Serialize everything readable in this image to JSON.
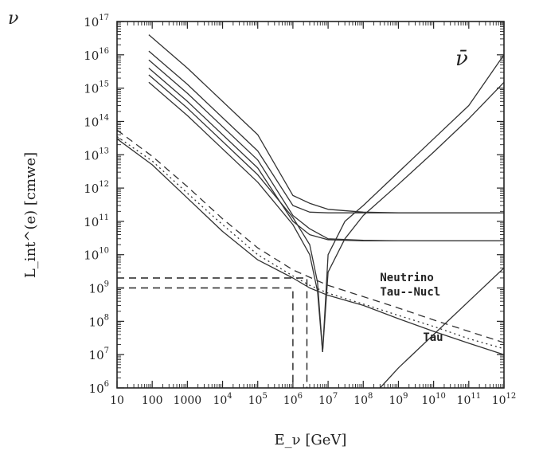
{
  "chart_data": {
    "type": "line",
    "corner_label": "ν",
    "panel_label": "ν̄",
    "xlabel": "E_ν [GeV]",
    "ylabel": "L_int^(e) [cmwe]",
    "xscale": "log",
    "yscale": "log",
    "xlim": [
      10,
      1000000000000.0
    ],
    "ylim": [
      1000000.0,
      1e+17
    ],
    "x_ticks": [
      {
        "value": 10,
        "label": "10"
      },
      {
        "value": 100,
        "label": "100"
      },
      {
        "value": 1000,
        "label": "1000"
      },
      {
        "value": 10000.0,
        "base": "10",
        "exp": "4"
      },
      {
        "value": 100000.0,
        "base": "10",
        "exp": "5"
      },
      {
        "value": 1000000.0,
        "base": "10",
        "exp": "6"
      },
      {
        "value": 10000000.0,
        "base": "10",
        "exp": "7"
      },
      {
        "value": 100000000.0,
        "base": "10",
        "exp": "8"
      },
      {
        "value": 1000000000.0,
        "base": "10",
        "exp": "9"
      },
      {
        "value": 10000000000.0,
        "base": "10",
        "exp": "10"
      },
      {
        "value": 100000000000.0,
        "base": "10",
        "exp": "11"
      },
      {
        "value": 1000000000000.0,
        "base": "10",
        "exp": "12"
      }
    ],
    "y_ticks": [
      {
        "value": 1000000.0,
        "base": "10",
        "exp": "6"
      },
      {
        "value": 10000000.0,
        "base": "10",
        "exp": "7"
      },
      {
        "value": 100000000.0,
        "base": "10",
        "exp": "8"
      },
      {
        "value": 1000000000.0,
        "base": "10",
        "exp": "9"
      },
      {
        "value": 10000000000.0,
        "base": "10",
        "exp": "10"
      },
      {
        "value": 100000000000.0,
        "base": "10",
        "exp": "11"
      },
      {
        "value": 1000000000000.0,
        "base": "10",
        "exp": "12"
      },
      {
        "value": 10000000000000.0,
        "base": "10",
        "exp": "13"
      },
      {
        "value": 100000000000000.0,
        "base": "10",
        "exp": "14"
      },
      {
        "value": 1000000000000000.0,
        "base": "10",
        "exp": "15"
      },
      {
        "value": 1e+16,
        "base": "10",
        "exp": "16"
      },
      {
        "value": 1e+17,
        "base": "10",
        "exp": "17"
      }
    ],
    "annotations": [
      {
        "text": "Neutrino",
        "x": 300000000.0,
        "y": 1600000000.0
      },
      {
        "text": "Tau--Nucl",
        "x": 300000000.0,
        "y": 600000000.0
      },
      {
        "text": "Tau",
        "x": 5000000000.0,
        "y": 26000000.0
      }
    ],
    "series": [
      {
        "style": "solid",
        "x": [
          80,
          1000,
          100000.0,
          1000000.0,
          3000000.0,
          10000000.0,
          100000000.0,
          1000000000.0,
          1000000000000.0
        ],
        "y": [
          4e+16,
          4000000000000000.0,
          40000000000000.0,
          600000000000.0,
          350000000000.0,
          230000000000.0,
          190000000000.0,
          180000000000.0,
          180000000000.0
        ]
      },
      {
        "style": "solid",
        "x": [
          80,
          1000,
          100000.0,
          1000000.0,
          3000000.0,
          10000000.0,
          100000000.0,
          1000000000.0,
          1000000000000.0
        ],
        "y": [
          1.3e+16,
          1300000000000000.0,
          13000000000000.0,
          300000000000.0,
          190000000000.0,
          180000000000.0,
          180000000000.0,
          180000000000.0,
          180000000000.0
        ]
      },
      {
        "style": "solid",
        "x": [
          80,
          1000,
          100000.0,
          1000000.0,
          3000000.0,
          10000000.0,
          100000000.0,
          1000000000.0,
          1000000000000.0
        ],
        "y": [
          7000000000000000.0,
          700000000000000.0,
          7000000000000.0,
          150000000000.0,
          60000000000.0,
          30000000000.0,
          27000000000.0,
          26000000000.0,
          26000000000.0
        ]
      },
      {
        "style": "solid",
        "x": [
          80,
          1000,
          100000.0,
          1000000.0,
          3000000.0,
          10000000.0,
          100000000.0,
          1000000000.0,
          1000000000000.0
        ],
        "y": [
          4000000000000000.0,
          400000000000000.0,
          4000000000000.0,
          100000000000.0,
          40000000000.0,
          28000000000.0,
          26000000000.0,
          26000000000.0,
          26000000000.0
        ]
      },
      {
        "style": "solid",
        "x": [
          80,
          1000,
          100000.0,
          1000000.0,
          3000000.0,
          5000000.0,
          7000000.0
        ],
        "y": [
          2500000000000000.0,
          250000000000000.0,
          2500000000000.0,
          130000000000.0,
          20000000000.0,
          1500000000.0,
          12000000.0
        ]
      },
      {
        "style": "solid",
        "x": [
          80,
          1000,
          100000.0,
          1000000.0,
          3000000.0,
          5000000.0,
          7000000.0
        ],
        "y": [
          1500000000000000.0,
          150000000000000.0,
          1500000000000.0,
          80000000000.0,
          10000000000.0,
          800000000.0,
          12000000.0
        ]
      },
      {
        "style": "solid",
        "x": [
          7000000.0,
          10000000.0,
          30000000.0,
          100000000.0,
          1000000000.0,
          10000000000.0,
          100000000000.0,
          1000000000000.0
        ],
        "y": [
          12000000.0,
          10000000000.0,
          100000000000.0,
          300000000000.0,
          3000000000000.0,
          30000000000000.0,
          300000000000000.0,
          1e+16
        ]
      },
      {
        "style": "solid",
        "x": [
          7000000.0,
          10000000.0,
          30000000.0,
          100000000.0,
          1000000000.0,
          10000000000.0,
          100000000000.0,
          1000000000000.0
        ],
        "y": [
          12000000.0,
          3000000000.0,
          30000000000.0,
          150000000000.0,
          1300000000000.0,
          12000000000000.0,
          120000000000000.0,
          1500000000000000.0
        ]
      },
      {
        "style": "solid",
        "x": [
          10,
          100,
          1000,
          10000.0,
          100000.0,
          1000000.0,
          3000000.0,
          10000000.0,
          100000000.0,
          1000000000.0,
          10000000000.0,
          100000000000.0,
          1000000000000.0
        ],
        "y": [
          30000000000000.0,
          5000000000000.0,
          500000000000.0,
          50000000000.0,
          7000000000.0,
          2000000000.0,
          1000000000.0,
          600000000.0,
          300000000.0,
          120000000.0,
          50000000.0,
          22000000.0,
          10000000.0
        ]
      },
      {
        "style": "dashed",
        "x": [
          10,
          100,
          1000,
          10000.0,
          100000.0,
          1000000.0,
          3000000.0,
          10000000.0,
          100000000.0,
          1000000000.0,
          10000000000.0,
          100000000000.0,
          1000000000000.0
        ],
        "y": [
          55000000000000.0,
          9000000000000.0,
          1100000000000.0,
          120000000000.0,
          16000000000.0,
          3500000000.0,
          2100000000.0,
          1200000000.0,
          550000000.0,
          250000000.0,
          110000000.0,
          50000000.0,
          23000000.0
        ]
      },
      {
        "style": "dotted",
        "x": [
          10,
          100,
          1000,
          10000.0,
          100000.0,
          1000000.0,
          3000000.0,
          10000000.0,
          100000000.0,
          1000000000.0,
          10000000000.0,
          100000000000.0,
          1000000000000.0
        ],
        "y": [
          35000000000000.0,
          6500000000000.0,
          700000000000.0,
          80000000000.0,
          10000000000.0,
          2300000000.0,
          1200000000.0,
          700000000.0,
          330000000.0,
          150000000.0,
          70000000.0,
          30000000.0,
          15000000.0
        ]
      },
      {
        "style": "solid",
        "x": [
          300000000.0,
          1000000000.0,
          10000000000.0,
          100000000000.0,
          1000000000000.0
        ],
        "y": [
          1000000.0,
          4000000.0,
          40000000.0,
          400000000.0,
          4000000000.0
        ]
      }
    ],
    "reference_lines": [
      {
        "style": "dashed",
        "x": [
          10,
          1000000.0,
          1000000.0
        ],
        "y": [
          1000000000.0,
          1000000000.0,
          1000000.0
        ]
      },
      {
        "style": "dashed",
        "x": [
          10,
          2500000.0,
          2500000.0
        ],
        "y": [
          2000000000.0,
          2000000000.0,
          1000000.0
        ]
      }
    ]
  }
}
